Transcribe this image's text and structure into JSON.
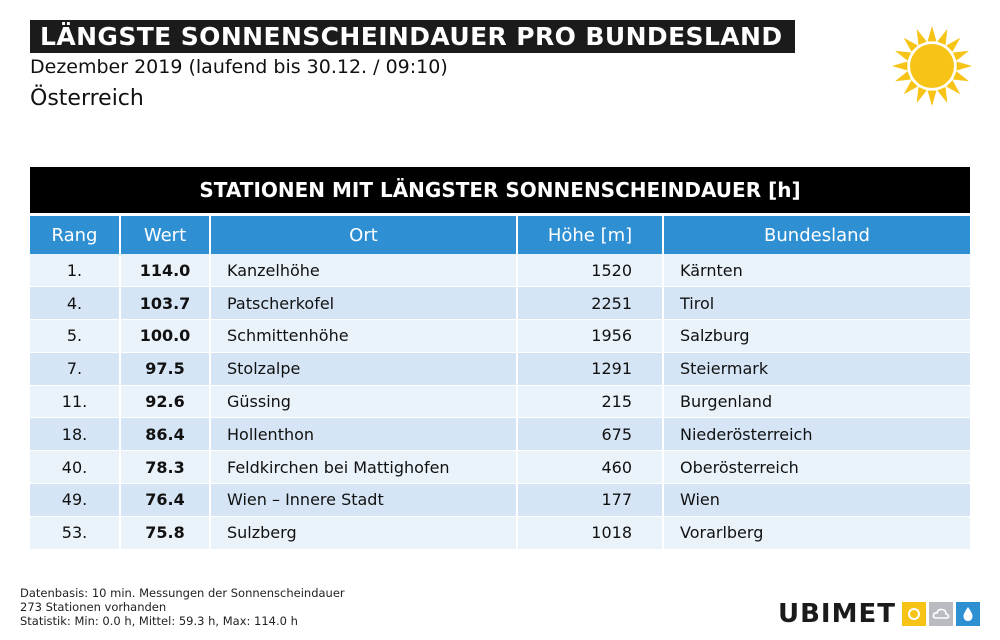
{
  "header": {
    "title": "LÄNGSTE SONNENSCHEINDAUER PRO BUNDESLAND",
    "subtitle": "Dezember 2019 (laufend bis 30.12. / 09:10)",
    "region": "Österreich"
  },
  "icons": {
    "sun": "sun-icon",
    "brand_sun": "sun-icon",
    "brand_cloud": "cloud-icon",
    "brand_drop": "drop-icon"
  },
  "colors": {
    "header_blue": "#2f8fd3",
    "sun_yellow": "#f7c316",
    "row_light": "#eaf2fa",
    "row_dark": "#d5e5f5"
  },
  "chart_data": {
    "type": "table",
    "title": "STATIONEN MIT LÄNGSTER SONNENSCHEINDAUER [h]",
    "columns": [
      "Rang",
      "Wert",
      "Ort",
      "Höhe [m]",
      "Bundesland"
    ],
    "rows": [
      [
        "1.",
        "114.0",
        "Kanzelhöhe",
        "1520",
        "Kärnten"
      ],
      [
        "4.",
        "103.7",
        "Patscherkofel",
        "2251",
        "Tirol"
      ],
      [
        "5.",
        "100.0",
        "Schmittenhöhe",
        "1956",
        "Salzburg"
      ],
      [
        "7.",
        "97.5",
        "Stolzalpe",
        "1291",
        "Steiermark"
      ],
      [
        "11.",
        "92.6",
        "Güssing",
        "215",
        "Burgenland"
      ],
      [
        "18.",
        "86.4",
        "Hollenthon",
        "675",
        "Niederösterreich"
      ],
      [
        "40.",
        "78.3",
        "Feldkirchen bei Mattighofen",
        "460",
        "Oberösterreich"
      ],
      [
        "49.",
        "76.4",
        "Wien – Innere Stadt",
        "177",
        "Wien"
      ],
      [
        "53.",
        "75.8",
        "Sulzberg",
        "1018",
        "Vorarlberg"
      ]
    ]
  },
  "footer": {
    "line1": "Datenbasis: 10 min. Messungen der Sonnenscheindauer",
    "line2": "273 Stationen vorhanden",
    "line3": "Statistik: Min: 0.0 h, Mittel: 59.3 h, Max: 114.0 h"
  },
  "brand": {
    "name": "UBIMET"
  }
}
